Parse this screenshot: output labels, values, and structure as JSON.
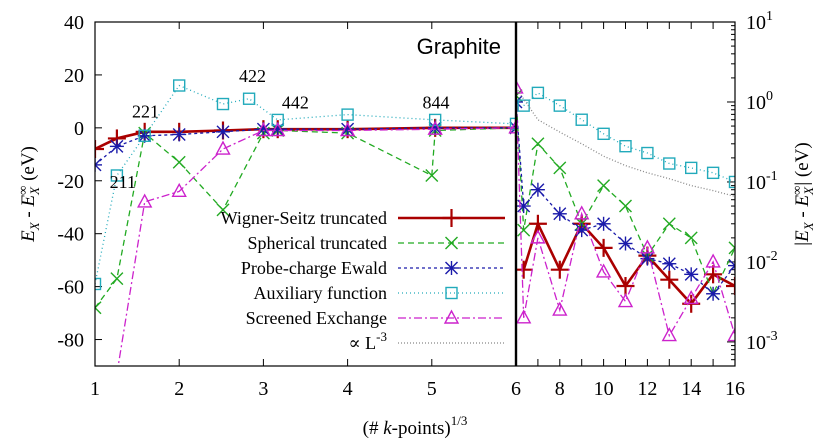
{
  "chart_data": [
    {
      "panel": "left",
      "type": "line",
      "title": "Graphite",
      "xlabel": "(# k-points)",
      "xlabel_superscript": "1/3",
      "ylabel": "E_X - E_X^∞ (eV)",
      "xlim": [
        1,
        6
      ],
      "ylim": [
        -90,
        40
      ],
      "xticks": [
        "1",
        "2",
        "3",
        "4",
        "5",
        "6"
      ],
      "yticks": [
        "40",
        "20",
        "0",
        "-20",
        "-40",
        "-60",
        "-80"
      ],
      "annotations": [
        "221",
        "422",
        "442",
        "844",
        "211"
      ],
      "series": [
        {
          "name": "Wigner-Seitz truncated",
          "color": "#aa0000",
          "dash": "",
          "marker": "plus",
          "x": [
            1,
            1.26,
            1.59,
            2.0,
            2.52,
            3.0,
            3.17,
            4.0,
            5.04,
            6.0
          ],
          "y": [
            -8,
            -4,
            -1.5,
            -1.5,
            -1,
            -0.5,
            -0.5,
            -0.5,
            0,
            0
          ]
        },
        {
          "name": "Spherical truncated",
          "color": "#22aa22",
          "dash": "6,4",
          "marker": "cross",
          "x": [
            1,
            1.26,
            1.59,
            2.0,
            2.52,
            3.0,
            3.17,
            4.0,
            5.0,
            5.04,
            6.0
          ],
          "y": [
            -68,
            -57,
            -2,
            -13,
            -31,
            -2,
            -1,
            -2,
            -18,
            -1,
            0
          ]
        },
        {
          "name": "Probe-charge Ewald",
          "color": "#1a1aaa",
          "dash": "3,3",
          "marker": "star",
          "x": [
            1,
            1.26,
            1.59,
            2.0,
            2.52,
            3.0,
            3.17,
            4.0,
            5.04,
            6.0
          ],
          "y": [
            -14,
            -7,
            -3,
            -2.5,
            -1.5,
            -0.5,
            -0.5,
            -0.5,
            0,
            0
          ]
        },
        {
          "name": "Auxiliary function",
          "color": "#22aabb",
          "dash": "1,3",
          "marker": "square",
          "x": [
            1,
            1.26,
            1.59,
            2.0,
            2.52,
            2.83,
            3.17,
            4.0,
            5.04,
            6.0
          ],
          "y": [
            -59,
            -18,
            -3,
            16,
            9,
            11,
            3,
            5,
            3,
            1.5
          ]
        },
        {
          "name": "Screened Exchange",
          "color": "#cc22cc",
          "dash": "8,3,2,3",
          "marker": "triangle",
          "x": [
            1.26,
            1.59,
            2.0,
            2.52,
            3.0,
            3.17,
            4.0,
            5.04,
            6.0
          ],
          "y": [
            -93,
            -28,
            -24,
            -8,
            -1,
            -1,
            -1,
            -0.5,
            0
          ]
        },
        {
          "name": "∝ L^-3",
          "color": "#888888",
          "dash": "1,2",
          "marker": "none",
          "x": [],
          "y": []
        }
      ]
    },
    {
      "panel": "right",
      "type": "line",
      "ylabel": "|E_X - E_X^∞| (eV)",
      "yscale": "log",
      "xlim": [
        6,
        16
      ],
      "ylim": [
        0.0005,
        10
      ],
      "xticks": [
        "6",
        "8",
        "10",
        "12",
        "14",
        "16"
      ],
      "yticks": [
        "10^1",
        "10^0",
        "10^-1",
        "10^-2",
        "10^-3"
      ],
      "series": [
        {
          "name": "Wigner-Seitz truncated",
          "color": "#aa0000",
          "dash": "",
          "marker": "plus",
          "x": [
            6.35,
            7,
            8,
            9,
            10,
            11,
            12,
            13,
            14,
            15,
            16
          ],
          "y": [
            0.008,
            0.03,
            0.008,
            0.03,
            0.015,
            0.005,
            0.012,
            0.006,
            0.003,
            0.007,
            0.005
          ]
        },
        {
          "name": "Spherical truncated",
          "color": "#22aa22",
          "dash": "6,4",
          "marker": "cross",
          "x": [
            6,
            6.35,
            7,
            8,
            9,
            10,
            11,
            12,
            13,
            14,
            15,
            16
          ],
          "y": [
            1.2,
            0.025,
            0.3,
            0.15,
            0.03,
            0.09,
            0.05,
            0.012,
            0.03,
            0.02,
            0.004,
            0.015
          ]
        },
        {
          "name": "Probe-charge Ewald",
          "color": "#1a1aaa",
          "dash": "3,3",
          "marker": "star",
          "x": [
            6,
            6.35,
            7,
            8,
            9,
            10,
            11,
            12,
            13,
            14,
            15,
            16
          ],
          "y": [
            1.0,
            0.05,
            0.08,
            0.04,
            0.025,
            0.03,
            0.017,
            0.011,
            0.0095,
            0.007,
            0.004,
            0.009
          ]
        },
        {
          "name": "Auxiliary function",
          "color": "#22aabb",
          "dash": "1,3",
          "marker": "square",
          "x": [
            6.35,
            7,
            8,
            9,
            10,
            11,
            12,
            13,
            14,
            15,
            16
          ],
          "y": [
            0.9,
            1.3,
            0.9,
            0.6,
            0.4,
            0.28,
            0.23,
            0.17,
            0.15,
            0.13,
            0.1
          ]
        },
        {
          "name": "Screened Exchange",
          "color": "#cc22cc",
          "dash": "8,3,2,3",
          "marker": "triangle",
          "x": [
            6,
            6.35,
            7,
            8,
            9,
            10,
            11,
            12,
            13,
            14,
            15,
            16
          ],
          "y": [
            1.5,
            0.002,
            0.02,
            0.0025,
            0.04,
            0.0075,
            0.0032,
            0.015,
            0.0012,
            0.0035,
            0.01,
            0.0012
          ]
        },
        {
          "name": "∝ L^-3",
          "color": "#888888",
          "dash": "1,2",
          "marker": "none",
          "x": [
            6,
            7,
            8,
            9,
            10,
            11,
            12,
            13,
            14,
            15,
            16
          ],
          "y": [
            1.5,
            0.6,
            0.42,
            0.3,
            0.21,
            0.16,
            0.13,
            0.11,
            0.09,
            0.078,
            0.066
          ]
        }
      ]
    }
  ]
}
